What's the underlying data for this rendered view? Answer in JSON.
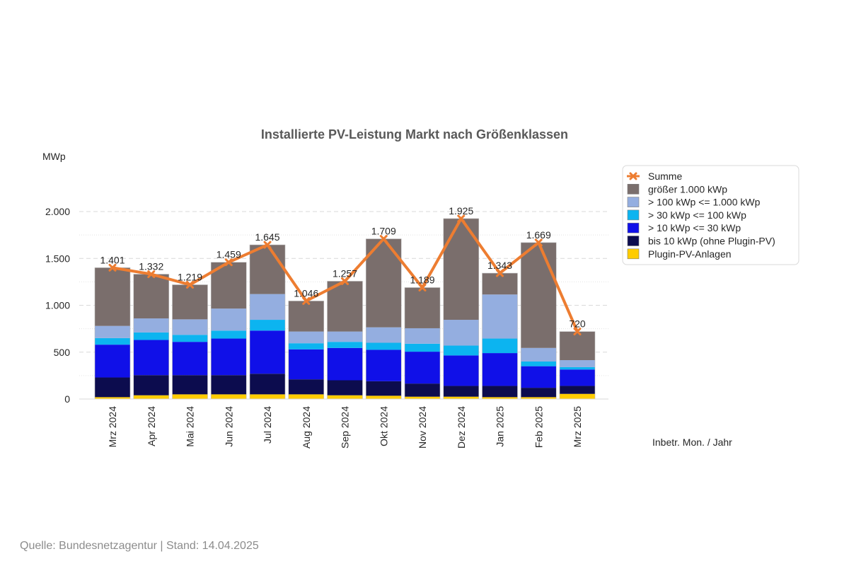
{
  "chart_data": {
    "type": "bar",
    "stacked": true,
    "title": "Installierte PV-Leistung Markt nach Größenklassen",
    "ylabel": "MWp",
    "xlabel": "Inbetr. Mon. / Jahr",
    "ylim": [
      0,
      2000
    ],
    "yticks": [
      0,
      500,
      1000,
      1500,
      2000
    ],
    "ytick_labels": [
      "0",
      "500",
      "1.000",
      "1.500",
      "2.000"
    ],
    "grid": true,
    "legend_position": "right",
    "categories": [
      "Mrz 2024",
      "Apr 2024",
      "Mai 2024",
      "Jun 2024",
      "Jul 2024",
      "Aug 2024",
      "Sep 2024",
      "Okt 2024",
      "Nov 2024",
      "Dez 2024",
      "Jan 2025",
      "Feb 2025",
      "Mrz 2025"
    ],
    "series": [
      {
        "name": "Plugin-PV-Anlagen",
        "color": "#ffcc00",
        "values": [
          20,
          40,
          50,
          50,
          50,
          50,
          40,
          35,
          25,
          25,
          20,
          20,
          55
        ]
      },
      {
        "name": "bis 10 kWp (ohne Plugin-PV)",
        "color": "#0c0c4e",
        "values": [
          210,
          215,
          205,
          205,
          220,
          160,
          160,
          155,
          140,
          115,
          120,
          100,
          85
        ]
      },
      {
        "name": "> 10 kWp <= 30 kWp",
        "color": "#1010e8",
        "values": [
          350,
          375,
          355,
          390,
          460,
          320,
          345,
          335,
          340,
          325,
          350,
          230,
          175
        ]
      },
      {
        "name": "> 30 kWp <= 100 kWp",
        "color": "#0cb4f0",
        "values": [
          70,
          80,
          75,
          85,
          115,
          65,
          65,
          75,
          85,
          105,
          155,
          50,
          25
        ]
      },
      {
        "name": "> 100 kWp <= 1.000 kWp",
        "color": "#94aee0",
        "values": [
          130,
          150,
          165,
          235,
          275,
          125,
          110,
          165,
          165,
          275,
          470,
          145,
          75
        ]
      },
      {
        "name": "größer 1.000 kWp",
        "color": "#7a6e6c",
        "values": [
          621,
          472,
          369,
          494,
          525,
          326,
          537,
          944,
          434,
          1080,
          228,
          1124,
          305
        ]
      }
    ],
    "line": {
      "name": "Summe",
      "color": "#ed7d31",
      "values": [
        1401,
        1332,
        1219,
        1459,
        1645,
        1046,
        1257,
        1709,
        1189,
        1925,
        1343,
        1669,
        720
      ],
      "labels": [
        "1.401",
        "1.332",
        "1.219",
        "1.459",
        "1.645",
        "1.046",
        "1.257",
        "1.709",
        "1.189",
        "1.925",
        "1.343",
        "1.669",
        "720"
      ]
    },
    "legend_order": [
      "Summe",
      "größer 1.000 kWp",
      "> 100 kWp <= 1.000 kWp",
      "> 30 kWp <= 100 kWp",
      "> 10 kWp <= 30 kWp",
      "bis 10 kWp (ohne Plugin-PV)",
      "Plugin-PV-Anlagen"
    ]
  },
  "footer": {
    "source": "Quelle: Bundesnetzagentur | Stand: 14.04.2025"
  }
}
